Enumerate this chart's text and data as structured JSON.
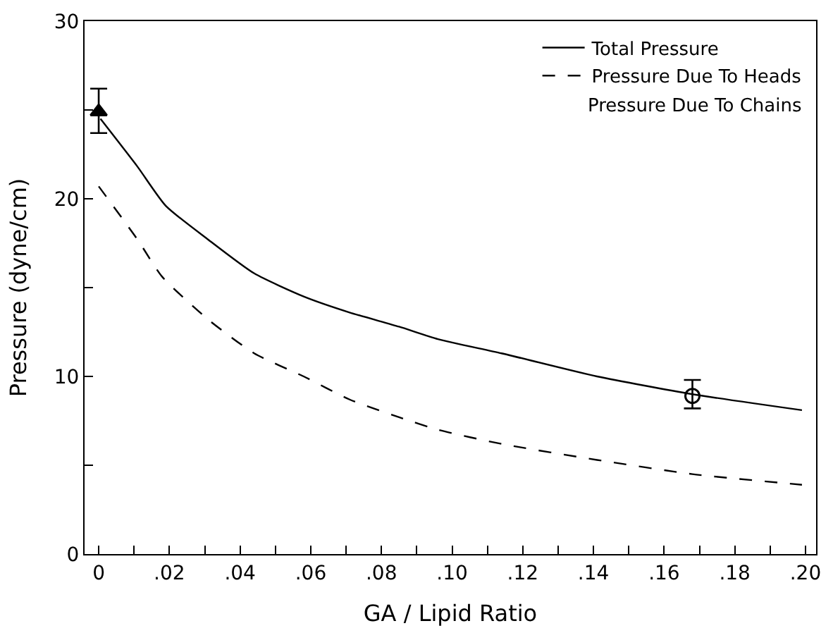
{
  "chart_data": {
    "type": "line",
    "xlabel": "GA / Lipid Ratio",
    "ylabel": "Pressure (dyne/cm)",
    "xlim": [
      -0.004,
      0.203
    ],
    "ylim": [
      0,
      30
    ],
    "xticks": [
      0,
      {
        "value": 0.01,
        "label": null
      },
      {
        "value": 0.02,
        "label": ".02"
      },
      {
        "value": 0.03,
        "label": null
      },
      {
        "value": 0.04,
        "label": ".04"
      },
      {
        "value": 0.05,
        "label": null
      },
      {
        "value": 0.06,
        "label": ".06"
      },
      {
        "value": 0.07,
        "label": null
      },
      {
        "value": 0.08,
        "label": ".08"
      },
      {
        "value": 0.09,
        "label": null
      },
      {
        "value": 0.1,
        "label": ".10"
      },
      {
        "value": 0.11,
        "label": null
      },
      {
        "value": 0.12,
        "label": ".12"
      },
      {
        "value": 0.13,
        "label": null
      },
      {
        "value": 0.14,
        "label": ".14"
      },
      {
        "value": 0.15,
        "label": null
      },
      {
        "value": 0.16,
        "label": ".16"
      },
      {
        "value": 0.17,
        "label": null
      },
      {
        "value": 0.18,
        "label": ".18"
      },
      {
        "value": 0.19,
        "label": null
      },
      {
        "value": 0.2,
        "label": ".20"
      }
    ],
    "yticks": [
      0,
      {
        "value": 5,
        "label": null
      },
      10,
      {
        "value": 15,
        "label": null
      },
      20,
      {
        "value": 25,
        "label": null
      },
      30
    ],
    "legend": "top right",
    "annotations": [
      "Pressure Due To Chains"
    ],
    "series": [
      {
        "name": "Total Pressure",
        "color": "#000000",
        "line_style": "solid",
        "marker": "none",
        "x": [
          0.0005,
          0.011,
          0.019,
          0.031,
          0.044,
          0.058,
          0.071,
          0.085,
          0.096,
          0.114,
          0.141,
          0.168,
          0.199
        ],
        "values": [
          24.5,
          21.8,
          19.6,
          17.7,
          15.8,
          14.5,
          13.6,
          12.8,
          12.1,
          11.3,
          10.0,
          9.0,
          8.1
        ]
      },
      {
        "name": "Pressure Due To Heads",
        "color": "#000000",
        "line_style": "dashed",
        "marker": "none",
        "x": [
          0,
          0.011,
          0.018,
          0.031,
          0.044,
          0.058,
          0.071,
          0.085,
          0.096,
          0.114,
          0.141,
          0.168,
          0.199
        ],
        "values": [
          20.7,
          17.7,
          15.6,
          13.2,
          11.3,
          10.0,
          8.7,
          7.7,
          7.0,
          6.2,
          5.3,
          4.5,
          3.9
        ]
      },
      {
        "type": "scatter",
        "color": "#000000",
        "marker": "triangle",
        "x": [
          0
        ],
        "values": [
          24.9
        ],
        "errors": [
          [
            23.7,
            26.2
          ]
        ]
      },
      {
        "type": "scatter",
        "color": "#000000",
        "marker": "circle",
        "x": [
          0.168
        ],
        "values": [
          8.9
        ],
        "errors": [
          [
            8.2,
            9.8
          ]
        ]
      }
    ]
  }
}
